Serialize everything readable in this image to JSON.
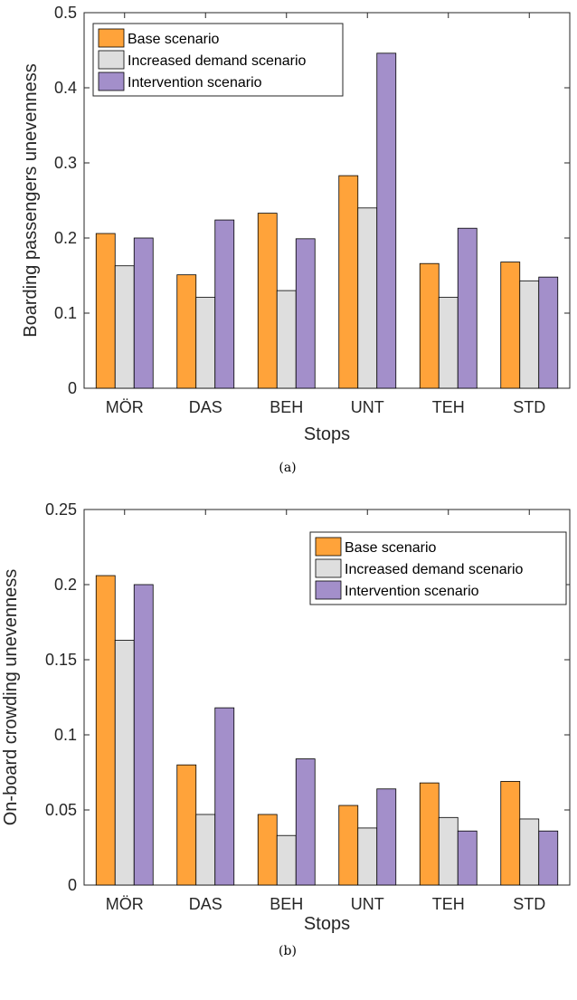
{
  "chart_data": [
    {
      "type": "bar",
      "caption": "(a)",
      "categories": [
        "MÖR",
        "DAS",
        "BEH",
        "UNT",
        "TEH",
        "STD"
      ],
      "series": [
        {
          "name": "Base scenario",
          "color": "#ffa33a",
          "values": [
            0.206,
            0.151,
            0.233,
            0.283,
            0.166,
            0.168
          ]
        },
        {
          "name": "Increased demand scenario",
          "color": "#dedede",
          "values": [
            0.163,
            0.121,
            0.13,
            0.24,
            0.121,
            0.143
          ]
        },
        {
          "name": "Intervention scenario",
          "color": "#a38fca",
          "values": [
            0.2,
            0.224,
            0.199,
            0.446,
            0.213,
            0.148
          ]
        }
      ],
      "xlabel": "Stops",
      "ylabel": "Boarding passengers unevenness",
      "ylim": [
        0,
        0.5
      ],
      "yticks": [
        "0",
        "0.1",
        "0.2",
        "0.3",
        "0.4",
        "0.5"
      ],
      "legend": "top-left",
      "grid": false
    },
    {
      "type": "bar",
      "caption": "(b)",
      "categories": [
        "MÖR",
        "DAS",
        "BEH",
        "UNT",
        "TEH",
        "STD"
      ],
      "series": [
        {
          "name": "Base scenario",
          "color": "#ffa33a",
          "values": [
            0.206,
            0.08,
            0.047,
            0.053,
            0.068,
            0.069
          ]
        },
        {
          "name": "Increased demand scenario",
          "color": "#dedede",
          "values": [
            0.163,
            0.047,
            0.033,
            0.038,
            0.045,
            0.044
          ]
        },
        {
          "name": "Intervention scenario",
          "color": "#a38fca",
          "values": [
            0.2,
            0.118,
            0.084,
            0.064,
            0.036,
            0.036
          ]
        }
      ],
      "xlabel": "Stops",
      "ylabel": "On-board crowding unevenness",
      "ylim": [
        0,
        0.25
      ],
      "yticks": [
        "0",
        "0.05",
        "0.1",
        "0.15",
        "0.2",
        "0.25"
      ],
      "legend": "top-right",
      "grid": false
    }
  ]
}
